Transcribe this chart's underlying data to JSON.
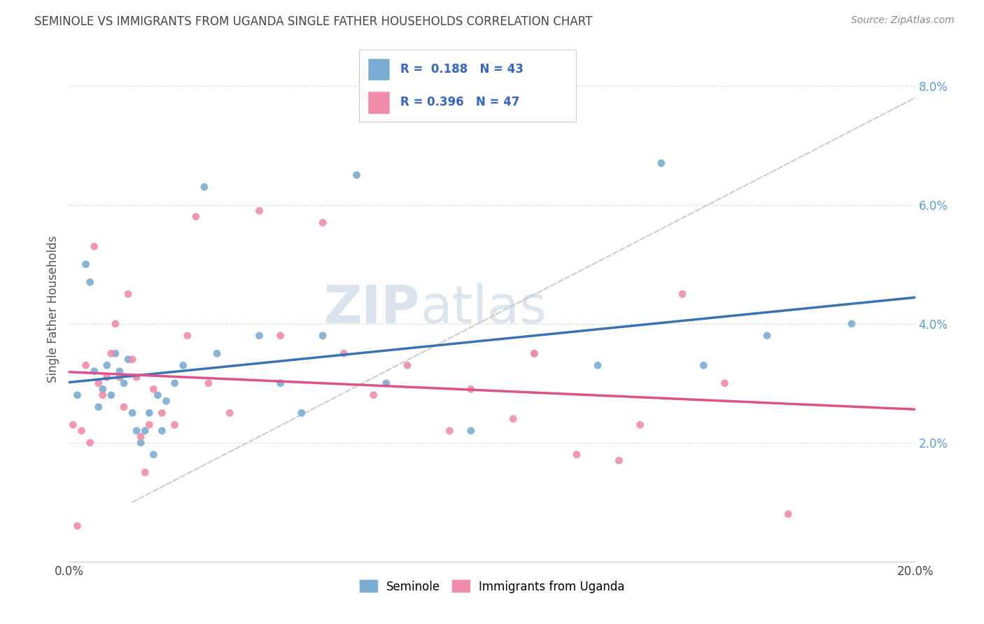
{
  "title": "SEMINOLE VS IMMIGRANTS FROM UGANDA SINGLE FATHER HOUSEHOLDS CORRELATION CHART",
  "source": "Source: ZipAtlas.com",
  "ylabel": "Single Father Households",
  "xlim": [
    0.0,
    20.0
  ],
  "ylim": [
    0.0,
    8.5
  ],
  "seminole_R": 0.188,
  "seminole_N": 43,
  "uganda_R": 0.396,
  "uganda_N": 47,
  "seminole_color": "#7aadd4",
  "uganda_color": "#f08caa",
  "seminole_line_color": "#3674b8",
  "uganda_line_color": "#e0508a",
  "trend_line_dashed_color": "#cccccc",
  "background_color": "#ffffff",
  "grid_color": "#dddddd",
  "seminole_scatter_x": [
    0.2,
    0.4,
    0.5,
    0.6,
    0.7,
    0.8,
    0.9,
    1.0,
    1.1,
    1.2,
    1.3,
    1.4,
    1.5,
    1.6,
    1.7,
    1.8,
    1.9,
    2.0,
    2.1,
    2.2,
    2.3,
    2.5,
    2.7,
    3.2,
    3.5,
    4.5,
    5.0,
    5.5,
    6.0,
    6.8,
    7.5,
    9.5,
    11.0,
    12.5,
    14.0,
    15.0,
    16.5,
    18.5
  ],
  "seminole_scatter_y": [
    2.8,
    5.0,
    4.7,
    3.2,
    2.6,
    2.9,
    3.3,
    2.8,
    3.5,
    3.2,
    3.0,
    3.4,
    2.5,
    2.2,
    2.0,
    2.2,
    2.5,
    1.8,
    2.8,
    2.2,
    2.7,
    3.0,
    3.3,
    6.3,
    3.5,
    3.8,
    3.0,
    2.5,
    3.8,
    6.5,
    3.0,
    2.2,
    3.5,
    3.3,
    6.7,
    3.3,
    3.8,
    4.0
  ],
  "uganda_scatter_x": [
    0.1,
    0.2,
    0.3,
    0.4,
    0.5,
    0.6,
    0.7,
    0.8,
    0.9,
    1.0,
    1.1,
    1.2,
    1.3,
    1.4,
    1.5,
    1.6,
    1.7,
    1.8,
    1.9,
    2.0,
    2.2,
    2.5,
    2.8,
    3.0,
    3.3,
    3.8,
    4.5,
    5.0,
    6.0,
    6.5,
    7.2,
    8.0,
    9.0,
    9.5,
    10.5,
    11.0,
    12.0,
    13.0,
    13.5,
    14.5,
    15.5,
    17.0
  ],
  "uganda_scatter_y": [
    2.3,
    0.6,
    2.2,
    3.3,
    2.0,
    5.3,
    3.0,
    2.8,
    3.1,
    3.5,
    4.0,
    3.1,
    2.6,
    4.5,
    3.4,
    3.1,
    2.1,
    1.5,
    2.3,
    2.9,
    2.5,
    2.3,
    3.8,
    5.8,
    3.0,
    2.5,
    5.9,
    3.8,
    5.7,
    3.5,
    2.8,
    3.3,
    2.2,
    2.9,
    2.4,
    3.5,
    1.8,
    1.7,
    2.3,
    4.5,
    3.0,
    0.8
  ],
  "watermark_zip": "ZIP",
  "watermark_atlas": "atlas"
}
